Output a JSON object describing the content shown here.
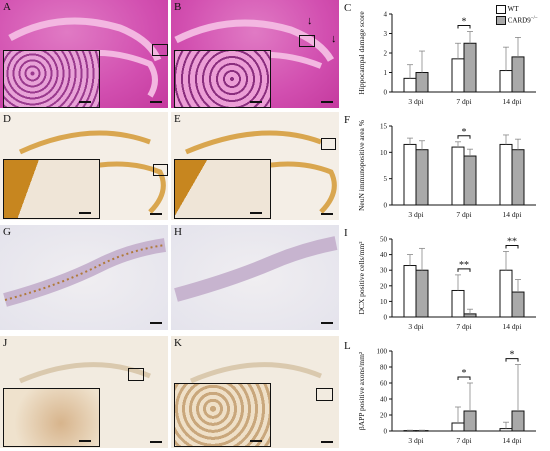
{
  "panels": {
    "A": {
      "label": "A"
    },
    "B": {
      "label": "B"
    },
    "C": {
      "label": "C"
    },
    "D": {
      "label": "D"
    },
    "E": {
      "label": "E"
    },
    "F": {
      "label": "F"
    },
    "G": {
      "label": "G"
    },
    "H": {
      "label": "H"
    },
    "I": {
      "label": "I"
    },
    "J": {
      "label": "J"
    },
    "K": {
      "label": "K"
    },
    "L": {
      "label": "L"
    }
  },
  "legend": {
    "wt": "WT",
    "ko": "CARD9",
    "ko_sup": "−/−"
  },
  "colors": {
    "wt_fill": "#ffffff",
    "ko_fill": "#a9a9a9",
    "he_bg": "#d24fb0",
    "dab_bg": "#f3ece3",
    "dcx_bg": "#eae7ef",
    "app_bg": "#efe6d8"
  },
  "chart_data": [
    {
      "panel": "C",
      "type": "bar",
      "categories": [
        "3 dpi",
        "7 dpi",
        "14 dpi"
      ],
      "ylabel": "Hippocampal damage score",
      "ylim": [
        0,
        4
      ],
      "yticks": [
        0,
        1,
        2,
        3,
        4
      ],
      "series": [
        {
          "name": "WT",
          "values": [
            0.7,
            1.7,
            1.1
          ],
          "errors": [
            0.7,
            0.8,
            1.2
          ]
        },
        {
          "name": "CARD9",
          "values": [
            1.0,
            2.5,
            1.8
          ],
          "errors": [
            1.1,
            0.6,
            1.0
          ]
        }
      ],
      "annotations": [
        {
          "category": "7 dpi",
          "text": "*"
        }
      ]
    },
    {
      "panel": "F",
      "type": "bar",
      "categories": [
        "3 dpi",
        "7 dpi",
        "14 dpi"
      ],
      "ylabel": "NeuN immunopositive area %",
      "ylim": [
        0,
        15
      ],
      "yticks": [
        0,
        5,
        10,
        15
      ],
      "series": [
        {
          "name": "WT",
          "values": [
            11.5,
            11.0,
            11.5
          ],
          "errors": [
            1.2,
            1.0,
            1.8
          ]
        },
        {
          "name": "CARD9",
          "values": [
            10.5,
            9.3,
            10.5
          ],
          "errors": [
            1.7,
            1.3,
            2.0
          ]
        }
      ],
      "annotations": [
        {
          "category": "7 dpi",
          "text": "*"
        }
      ]
    },
    {
      "panel": "I",
      "type": "bar",
      "categories": [
        "3 dpi",
        "7 dpi",
        "14 dpi"
      ],
      "ylabel": "DCX positive cells/mm²",
      "ylim": [
        0,
        50
      ],
      "yticks": [
        0,
        10,
        20,
        30,
        40,
        50
      ],
      "series": [
        {
          "name": "WT",
          "values": [
            33,
            17,
            30
          ],
          "errors": [
            7,
            10,
            12
          ]
        },
        {
          "name": "CARD9",
          "values": [
            30,
            2,
            16
          ],
          "errors": [
            14,
            3,
            8
          ]
        }
      ],
      "annotations": [
        {
          "category": "7 dpi",
          "text": "**"
        },
        {
          "category": "14 dpi",
          "text": "**"
        }
      ]
    },
    {
      "panel": "L",
      "type": "bar",
      "categories": [
        "3 dpi",
        "7 dpi",
        "14 dpi"
      ],
      "ylabel": "βAPP positive axons/mm²",
      "ylim": [
        0,
        100
      ],
      "yticks": [
        0,
        20,
        40,
        60,
        80,
        100
      ],
      "series": [
        {
          "name": "WT",
          "values": [
            0.5,
            10,
            3
          ],
          "errors": [
            0.5,
            20,
            8
          ]
        },
        {
          "name": "CARD9",
          "values": [
            0.5,
            25,
            25
          ],
          "errors": [
            0.5,
            35,
            58
          ]
        }
      ],
      "annotations": [
        {
          "category": "7 dpi",
          "text": "*"
        },
        {
          "category": "14 dpi",
          "text": "*"
        }
      ]
    }
  ]
}
